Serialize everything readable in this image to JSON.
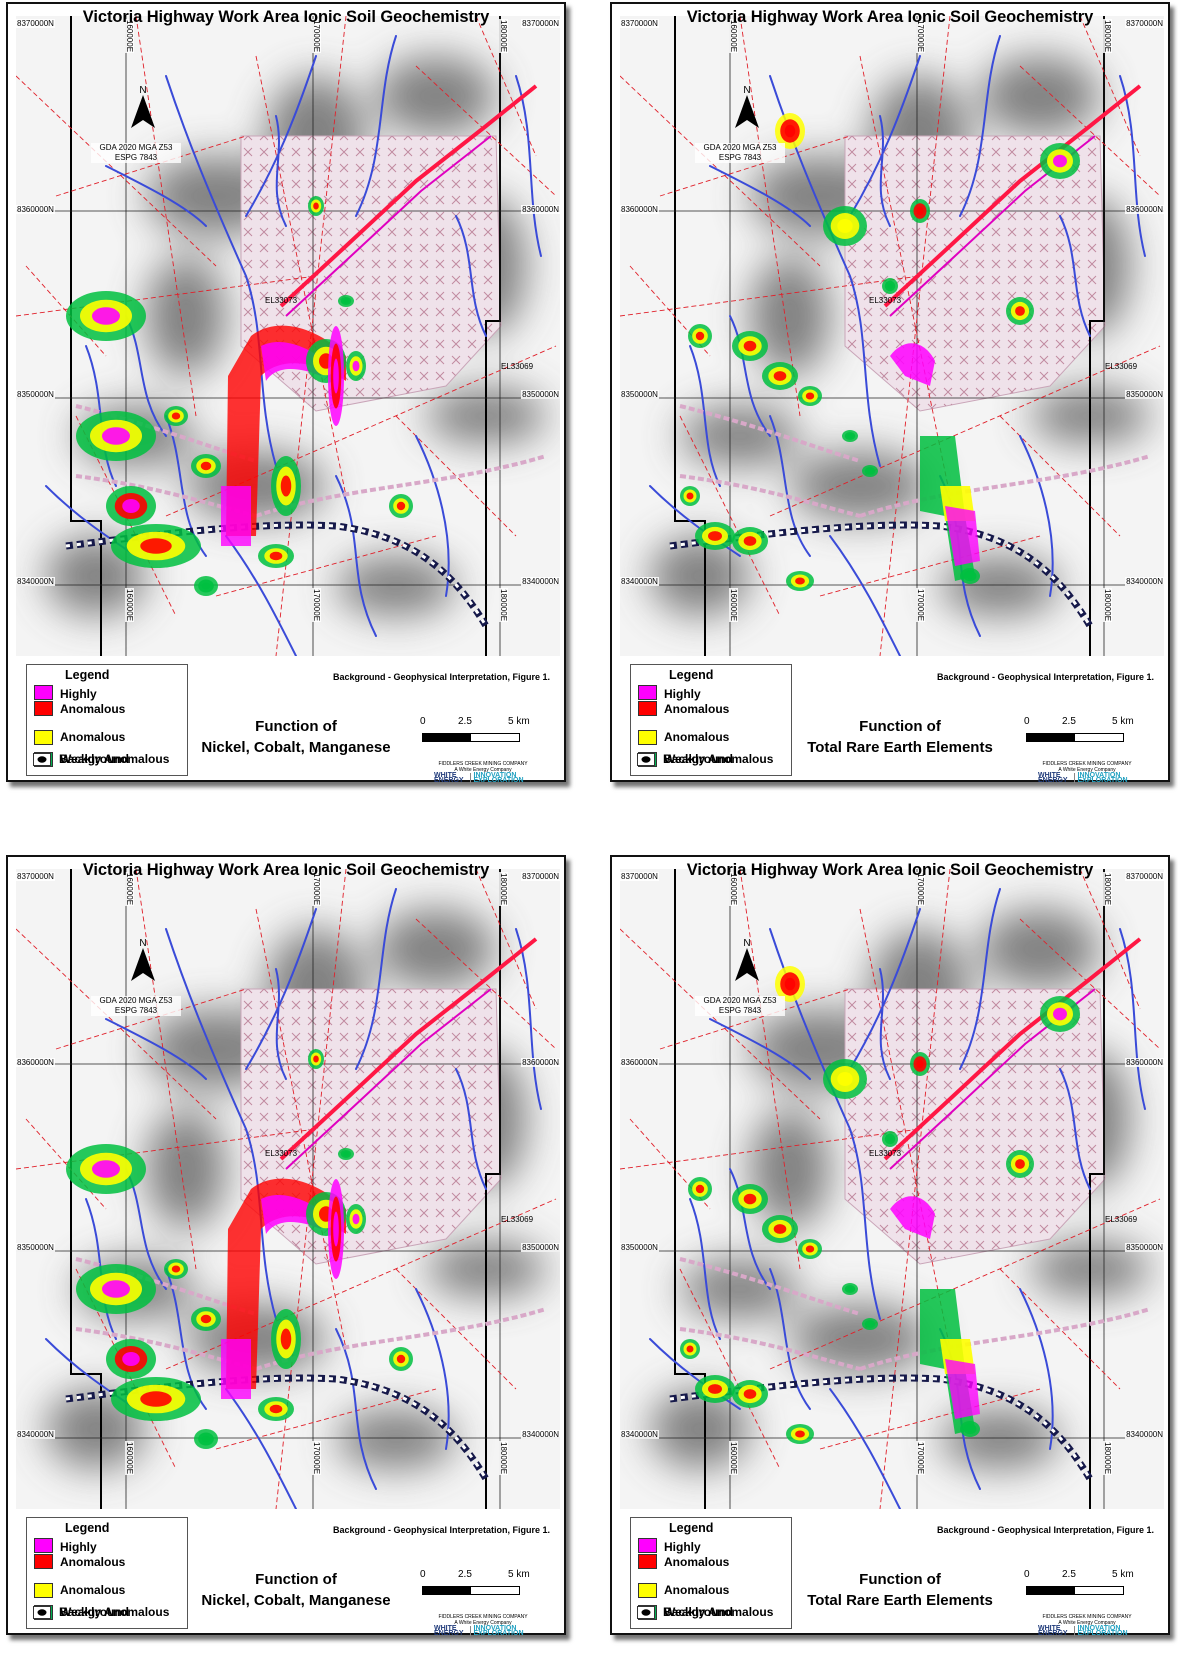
{
  "panels": [
    {
      "title": "Victoria Highway Work Area Ionic Soil Geochemistry",
      "function_line1": "Function of",
      "function_line2": "Nickel, Cobalt, Manganese",
      "variant": "nicomn"
    },
    {
      "title": "Victoria Highway Work Area Ionic Soil Geochemistry",
      "function_line1": "Function of",
      "function_line2": "Total Rare Earth Elements",
      "variant": "ree"
    },
    {
      "title": "Victoria Highway Work Area Ionic Soil Geochemistry",
      "function_line1": "Function of",
      "function_line2": "Nickel, Cobalt, Manganese",
      "variant": "nicomn"
    },
    {
      "title": "Victoria Highway Work Area Ionic Soil Geochemistry",
      "function_line1": "Function of",
      "function_line2": "Total Rare Earth Elements",
      "variant": "ree"
    }
  ],
  "map": {
    "crs_line1": "GDA 2020 MGA Z53",
    "crs_line2": "ESPG 7843",
    "north_label": "N",
    "northings": [
      "8370000N",
      "8360000N",
      "8350000N",
      "8340000N"
    ],
    "eastings": [
      "160000E",
      "170000E",
      "180000E"
    ],
    "tenements": [
      "EL33073",
      "EL33069"
    ],
    "background_note": "Background - Geophysical Interpretation, Figure 1."
  },
  "legend": {
    "title": "Legend",
    "items": [
      {
        "label": "Highly",
        "color": "#ff00ff"
      },
      {
        "label": "Anomalous",
        "color": "#ff0000"
      },
      {
        "label": "Anomalous",
        "color": "#ffff00"
      },
      {
        "label": "Weakly Anomalous",
        "color": "#00b050"
      },
      {
        "label": "Background",
        "color": "#000000"
      }
    ]
  },
  "scale_bar": {
    "ticks": [
      "0",
      "2.5",
      "5 km"
    ]
  },
  "company": {
    "line1": "FIDDLERS CREEK MINING COMPANY",
    "line2": "A White Energy Company",
    "logo_left_1": "WHITE",
    "logo_left_2": "ENERGY",
    "logo_right_1": "INNOVATION",
    "logo_right_2": "EXPLORATION"
  },
  "colors": {
    "highly": "#ff00ff",
    "anomalous_red": "#ff0000",
    "anomalous_yellow": "#ffff00",
    "weak": "#00c040",
    "drainage": "#3a4bd8",
    "structure": "#e0202a",
    "tenement_hatch": "#d8b8c8"
  }
}
